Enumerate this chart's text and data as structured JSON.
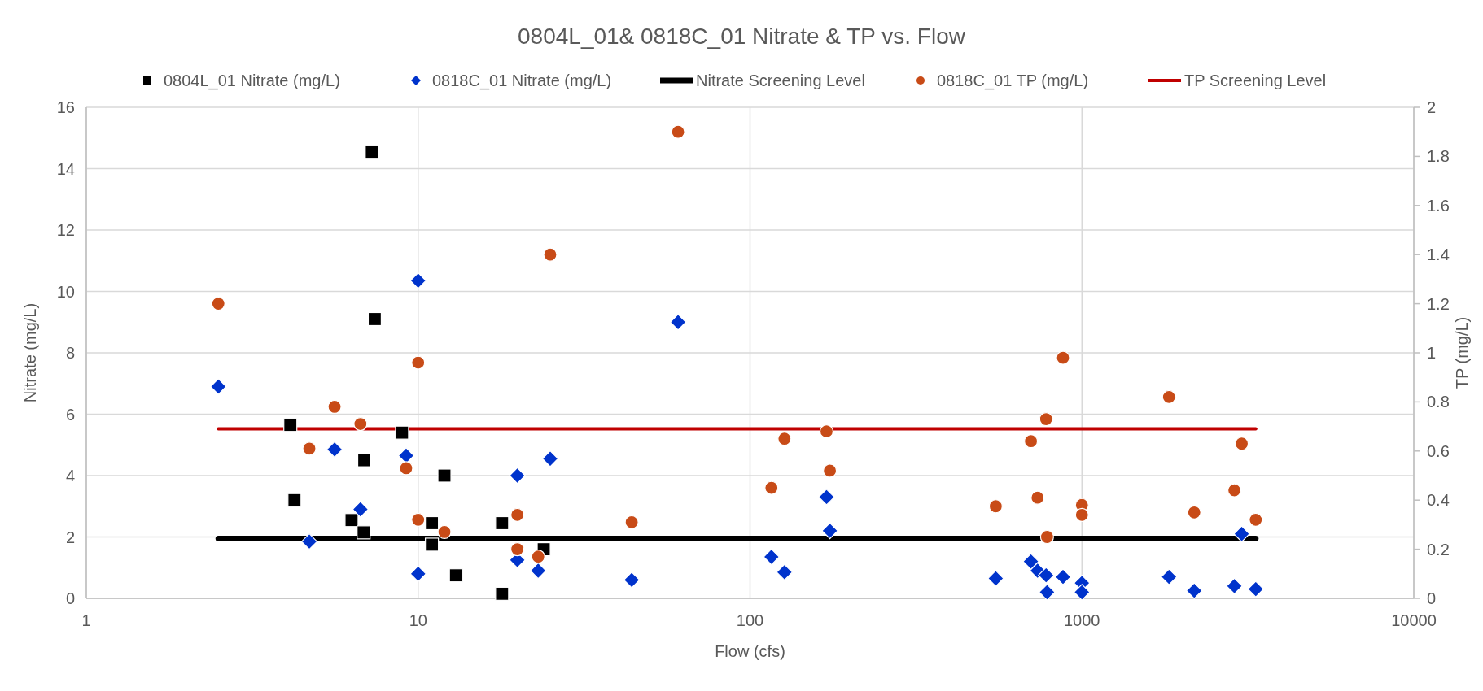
{
  "chart_data": {
    "type": "scatter",
    "title": "0804L_01& 0818C_01 Nitrate & TP vs. Flow",
    "xlabel": "Flow (cfs)",
    "ylabel": "Nitrate (mg/L)",
    "y2label": "TP (mg/L)",
    "log": "x",
    "grid": true,
    "legend": "top",
    "xlim": [
      1,
      10000
    ],
    "xticks": [
      1,
      10,
      100,
      1000,
      10000
    ],
    "ylim": [
      0,
      16
    ],
    "yticks": [
      0,
      2,
      4,
      6,
      8,
      10,
      12,
      14,
      16
    ],
    "y2lim": [
      0,
      2
    ],
    "y2ticks": [
      {
        "value": 0,
        "label": "0"
      },
      {
        "value": 0.2,
        "label": "0.2"
      },
      {
        "value": 0.4,
        "label": "0.4"
      },
      {
        "value": 0.6,
        "label": "0.6"
      },
      {
        "value": 0.8,
        "label": "0.8"
      },
      {
        "value": 1,
        "label": "1"
      },
      {
        "value": 1.2,
        "label": "1.2"
      },
      {
        "value": 1.4,
        "label": "1.4"
      },
      {
        "value": 1.6,
        "label": "1.6"
      },
      {
        "value": 1.8,
        "label": "1.8"
      },
      {
        "value": 2,
        "label": "2"
      }
    ],
    "series": [
      {
        "name": "0804L_01 Nitrate (mg/L)",
        "marker": "square",
        "color": "#000000",
        "x": [
          7.25,
          7.4,
          4.12,
          4.24,
          8.94,
          6.88,
          6.3,
          6.85,
          12,
          11,
          11,
          13,
          17.9,
          17.9,
          23.9
        ],
        "values": [
          14.55,
          9.1,
          5.65,
          3.2,
          5.4,
          4.5,
          2.55,
          2.15,
          4,
          2.45,
          1.75,
          0.75,
          2.45,
          0.15,
          1.6
        ]
      },
      {
        "name": "0818C_01 Nitrate (mg/L)",
        "marker": "diamond",
        "color": "#0033cc",
        "x": [
          2.5,
          5.6,
          4.7,
          6.7,
          9.2,
          10,
          10,
          19.9,
          19.9,
          23,
          25,
          44,
          60.7,
          116,
          127,
          170,
          174,
          550,
          702,
          735,
          780,
          785,
          877,
          1000,
          1000,
          1830,
          2180,
          2880,
          3030,
          3340
        ],
        "values": [
          6.9,
          4.85,
          1.85,
          2.9,
          4.65,
          10.35,
          0.8,
          4,
          1.25,
          0.9,
          4.55,
          0.6,
          9,
          1.35,
          0.85,
          3.3,
          2.2,
          0.65,
          1.2,
          0.9,
          0.75,
          0.2,
          0.7,
          0.5,
          0.2,
          0.7,
          0.25,
          0.4,
          2.1,
          0.3
        ]
      },
      {
        "name": "Nitrate Screening Level",
        "type": "line",
        "line_style": "solid",
        "color": "#000000",
        "x": [
          2.5,
          3340
        ],
        "values": [
          1.95,
          1.95
        ]
      },
      {
        "name": "0818C_01 TP (mg/L)",
        "marker": "circle",
        "axis": "y2",
        "color": "#c84b17",
        "x": [
          2.5,
          5.6,
          4.7,
          6.7,
          9.2,
          10,
          10,
          12,
          19.9,
          19.9,
          23,
          25,
          44,
          60.7,
          116,
          127,
          170,
          174,
          550,
          702,
          735,
          780,
          785,
          877,
          1000,
          1000,
          1830,
          2180,
          2880,
          3030,
          3340
        ],
        "values": [
          1.2,
          0.78,
          0.61,
          0.71,
          0.53,
          0.96,
          0.32,
          0.27,
          0.34,
          0.2,
          0.17,
          1.4,
          0.31,
          1.9,
          0.45,
          0.65,
          0.68,
          0.52,
          0.375,
          0.64,
          0.41,
          0.73,
          0.25,
          0.98,
          0.38,
          0.34,
          0.82,
          0.35,
          0.44,
          0.63,
          0.32
        ]
      },
      {
        "name": "TP Screening Level",
        "type": "line",
        "line_style": "solid",
        "axis": "y2",
        "color": "#c00000",
        "x": [
          2.5,
          3340
        ],
        "values": [
          0.69,
          0.69
        ]
      }
    ]
  }
}
